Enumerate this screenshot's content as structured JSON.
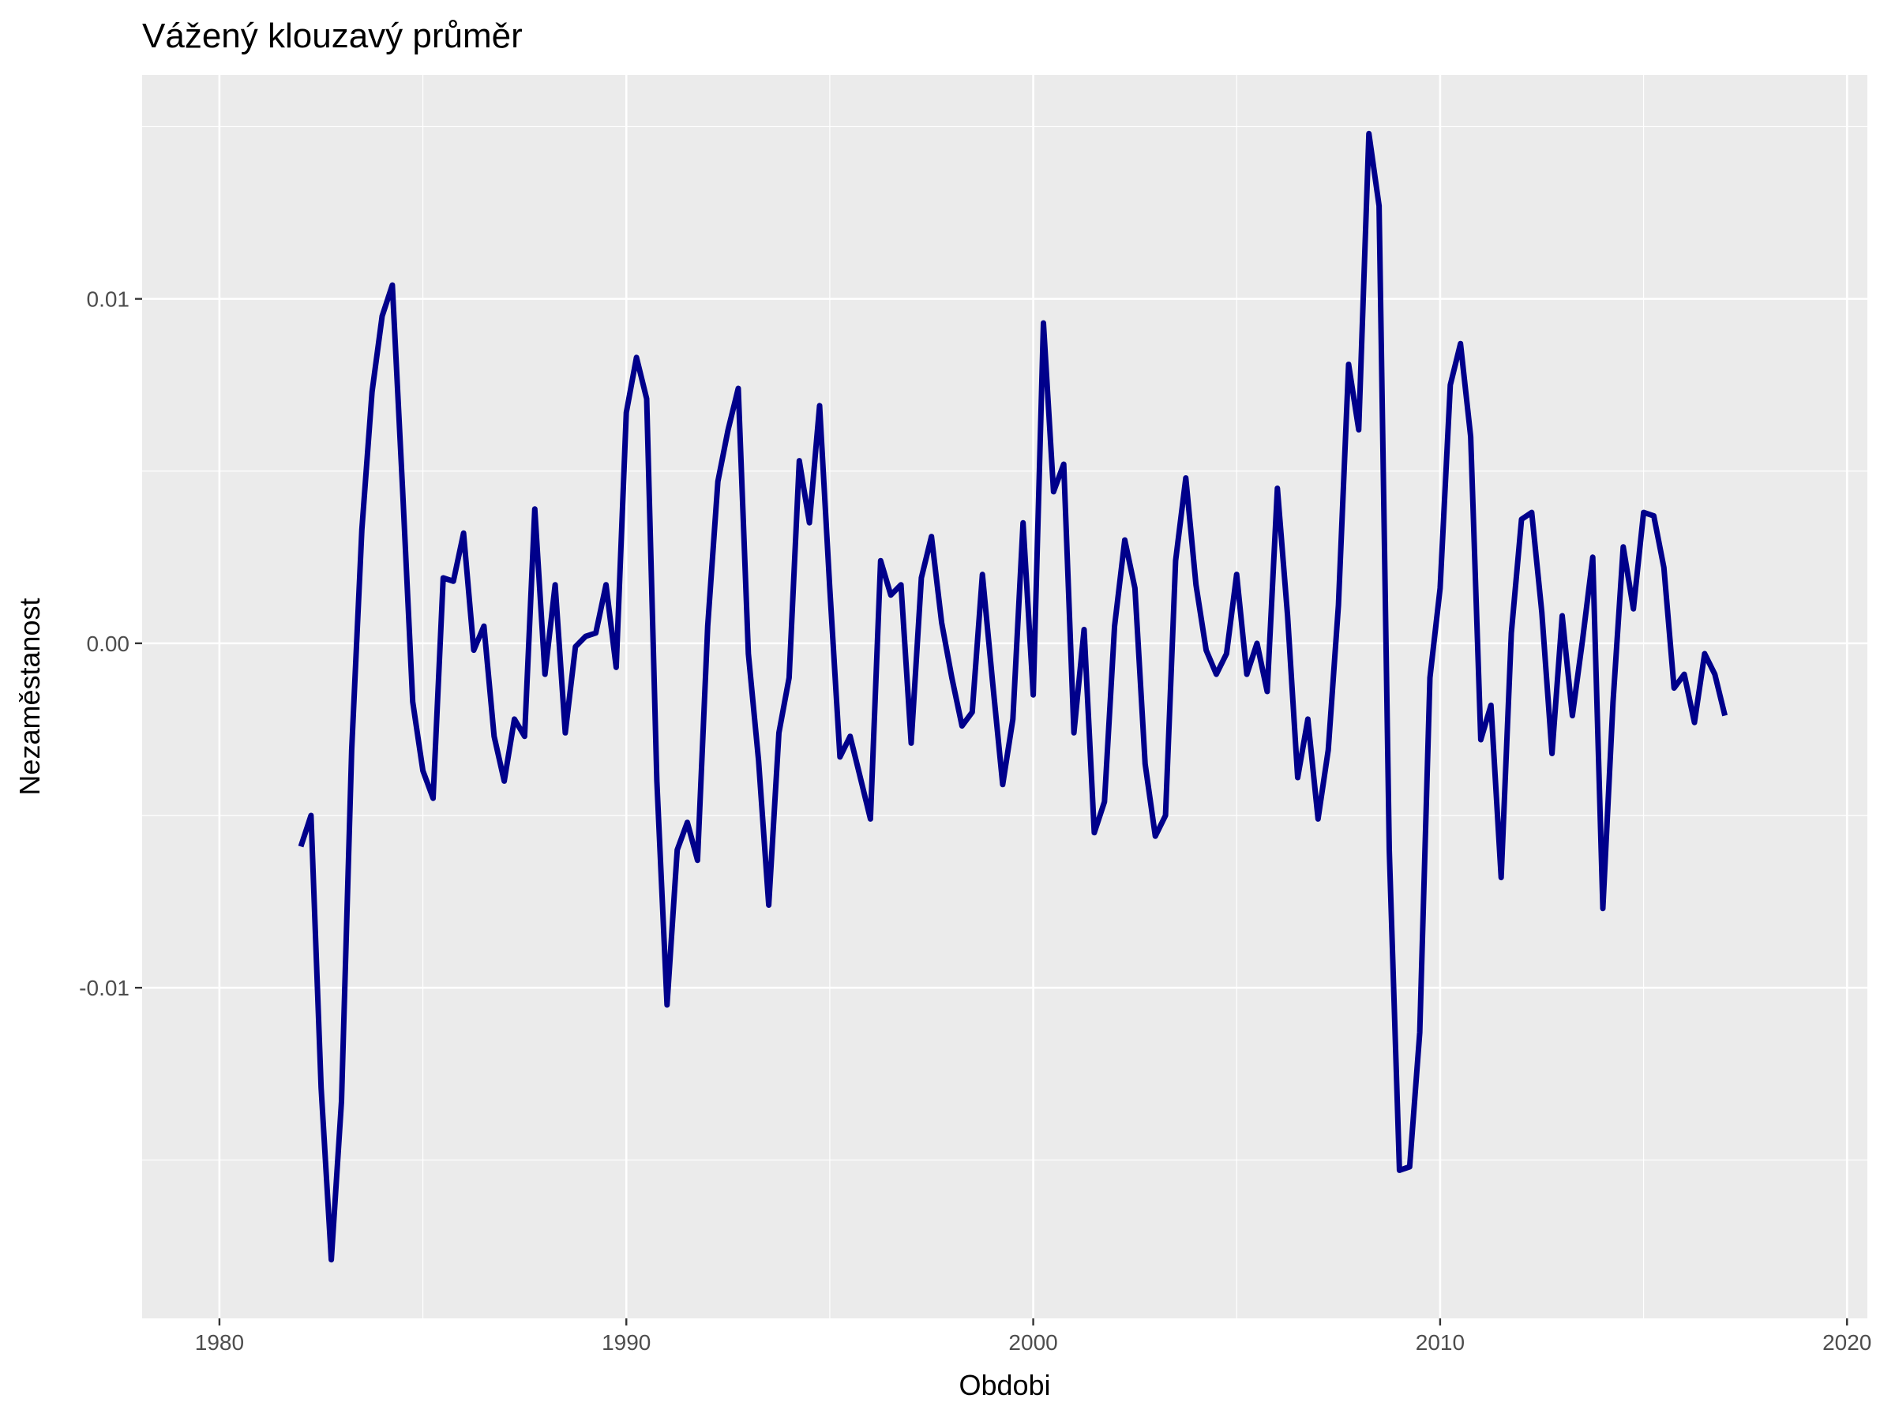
{
  "chart_data": {
    "type": "line",
    "title": "Vážený klouzavý průměr",
    "xlabel": "Obdobi",
    "ylabel": "Nezaměstanost",
    "xlim": [
      1978.1,
      2020.5
    ],
    "ylim": [
      -0.0196,
      0.0165
    ],
    "x_ticks": [
      1980,
      1990,
      2000,
      2010,
      2020
    ],
    "x_tick_labels": [
      "1980",
      "1990",
      "2000",
      "2010",
      "2020"
    ],
    "y_ticks": [
      -0.01,
      0.0,
      0.01
    ],
    "y_tick_labels": [
      "-0.01",
      "0.00",
      "0.01"
    ],
    "grid": true,
    "legend": "none",
    "colors": {
      "panel": "#ebebeb",
      "grid": "#ffffff",
      "line": "#00008b",
      "tick": "#333333"
    },
    "series": [
      {
        "x": [
          1982.0,
          1982.25,
          1982.5,
          1982.75,
          1983.0,
          1983.25,
          1983.5,
          1983.75,
          1984.0,
          1984.25,
          1984.5,
          1984.75,
          1985.0,
          1985.25,
          1985.5,
          1985.75,
          1986.0,
          1986.25,
          1986.5,
          1986.75,
          1987.0,
          1987.25,
          1987.5,
          1987.75,
          1988.0,
          1988.25,
          1988.5,
          1988.75,
          1989.0,
          1989.25,
          1989.5,
          1989.75,
          1990.0,
          1990.25,
          1990.5,
          1990.75,
          1991.0,
          1991.25,
          1991.5,
          1991.75,
          1992.0,
          1992.25,
          1992.5,
          1992.75,
          1993.0,
          1993.25,
          1993.5,
          1993.75,
          1994.0,
          1994.25,
          1994.5,
          1994.75,
          1995.0,
          1995.25,
          1995.5,
          1995.75,
          1996.0,
          1996.25,
          1996.5,
          1996.75,
          1997.0,
          1997.25,
          1997.5,
          1997.75,
          1998.0,
          1998.25,
          1998.5,
          1998.75,
          1999.0,
          1999.25,
          1999.5,
          1999.75,
          2000.0,
          2000.25,
          2000.5,
          2000.75,
          2001.0,
          2001.25,
          2001.5,
          2001.75,
          2002.0,
          2002.25,
          2002.5,
          2002.75,
          2003.0,
          2003.25,
          2003.5,
          2003.75,
          2004.0,
          2004.25,
          2004.5,
          2004.75,
          2005.0,
          2005.25,
          2005.5,
          2005.75,
          2006.0,
          2006.25,
          2006.5,
          2006.75,
          2007.0,
          2007.25,
          2007.5,
          2007.75,
          2008.0,
          2008.25,
          2008.5,
          2008.75,
          2009.0,
          2009.25,
          2009.5,
          2009.75,
          2010.0,
          2010.25,
          2010.5,
          2010.75,
          2011.0,
          2011.25,
          2011.5,
          2011.75,
          2012.0,
          2012.25,
          2012.5,
          2012.75,
          2013.0,
          2013.25,
          2013.5,
          2013.75,
          2014.0,
          2014.25,
          2014.5,
          2014.75,
          2015.0,
          2015.25,
          2015.5,
          2015.75,
          2016.0,
          2016.25,
          2016.5,
          2016.75,
          2017.0
        ],
        "y": [
          -0.0059,
          -0.005,
          -0.0129,
          -0.0179,
          -0.0133,
          -0.0031,
          0.0033,
          0.0073,
          0.0095,
          0.0104,
          0.0045,
          -0.0017,
          -0.0037,
          -0.0045,
          0.0019,
          0.0018,
          0.0032,
          -0.0002,
          0.0005,
          -0.0027,
          -0.004,
          -0.0022,
          -0.0027,
          0.0039,
          -0.0009,
          0.0017,
          -0.0026,
          -0.0001,
          0.0002,
          0.0003,
          0.0017,
          -0.0007,
          0.0067,
          0.0083,
          0.0071,
          -0.004,
          -0.0105,
          -0.006,
          -0.0052,
          -0.0063,
          0.0005,
          0.0047,
          0.0062,
          0.0074,
          -0.0003,
          -0.0034,
          -0.0076,
          -0.0026,
          -0.001,
          0.0053,
          0.0035,
          0.0069,
          0.0016,
          -0.0033,
          -0.0027,
          -0.0039,
          -0.0051,
          0.0024,
          0.0014,
          0.0017,
          -0.0029,
          0.0019,
          0.0031,
          0.0006,
          -0.001,
          -0.0024,
          -0.002,
          0.002,
          -0.0011,
          -0.0041,
          -0.0022,
          0.0035,
          -0.0015,
          0.0093,
          0.0044,
          0.0052,
          -0.0026,
          0.0004,
          -0.0055,
          -0.0046,
          0.0005,
          0.003,
          0.0016,
          -0.0035,
          -0.0056,
          -0.005,
          0.0024,
          0.0048,
          0.0017,
          -0.0002,
          -0.0009,
          -0.0003,
          0.002,
          -0.0009,
          0.0,
          -0.0014,
          0.0045,
          0.0008,
          -0.0039,
          -0.0022,
          -0.0051,
          -0.0031,
          0.0011,
          0.0081,
          0.0062,
          0.0148,
          0.0127,
          -0.006,
          -0.0153,
          -0.0152,
          -0.0113,
          -0.001,
          0.0016,
          0.0075,
          0.0087,
          0.006,
          -0.0028,
          -0.0018,
          -0.0068,
          0.0003,
          0.0036,
          0.0038,
          0.0009,
          -0.0032,
          0.0008,
          -0.0021,
          0.0001,
          0.0025,
          -0.0077,
          -0.0017,
          0.0028,
          0.001,
          0.0038,
          0.0037,
          0.0022,
          -0.0013,
          -0.0009,
          -0.0023,
          -0.0003,
          -0.0009,
          -0.0021
        ]
      }
    ]
  }
}
